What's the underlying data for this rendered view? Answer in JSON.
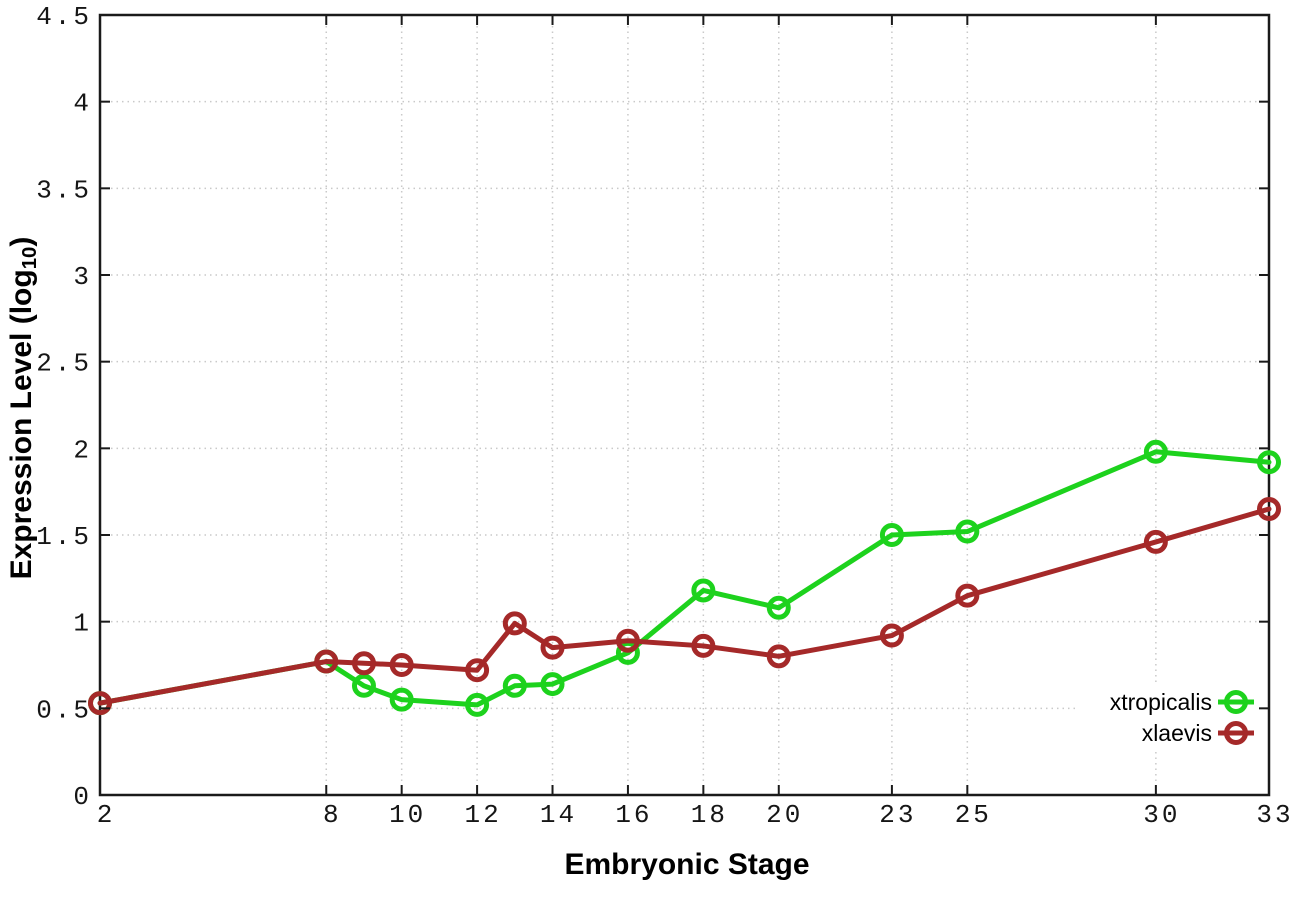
{
  "figure": {
    "xlabel": "Embryonic Stage",
    "ylabel_main": "Expression Level (log",
    "ylabel_subscript": "10",
    "ylabel_close": ")"
  },
  "chart_data": {
    "type": "line",
    "title": "",
    "xlabel": "Embryonic Stage",
    "ylabel": "Expression Level (log10)",
    "xlim": [
      2,
      33
    ],
    "ylim": [
      0,
      4.5
    ],
    "x_ticks": [
      2,
      8,
      10,
      12,
      14,
      16,
      18,
      20,
      23,
      25,
      30,
      33
    ],
    "y_ticks": [
      0,
      0.5,
      1,
      1.5,
      2,
      2.5,
      3,
      3.5,
      4,
      4.5
    ],
    "grid": true,
    "legend_position": "bottom-right",
    "marker": "open-circle",
    "x": [
      2,
      8,
      9,
      10,
      12,
      13,
      14,
      16,
      18,
      20,
      23,
      25,
      30,
      33
    ],
    "series": [
      {
        "name": "xtropicalis",
        "color": "#1dd21d",
        "values": [
          0.53,
          0.77,
          0.63,
          0.55,
          0.52,
          0.63,
          0.64,
          0.82,
          1.18,
          1.08,
          1.5,
          1.52,
          1.98,
          1.92
        ]
      },
      {
        "name": "xlaevis",
        "color": "#a52929",
        "values": [
          0.53,
          0.77,
          0.76,
          0.75,
          0.72,
          0.99,
          0.85,
          0.89,
          0.86,
          0.8,
          0.92,
          1.15,
          1.46,
          1.65
        ]
      }
    ],
    "colors": {
      "grid": "#c9c9c9",
      "border": "#1a1a1a",
      "tick_text": "#161616",
      "background": "#ffffff"
    }
  }
}
